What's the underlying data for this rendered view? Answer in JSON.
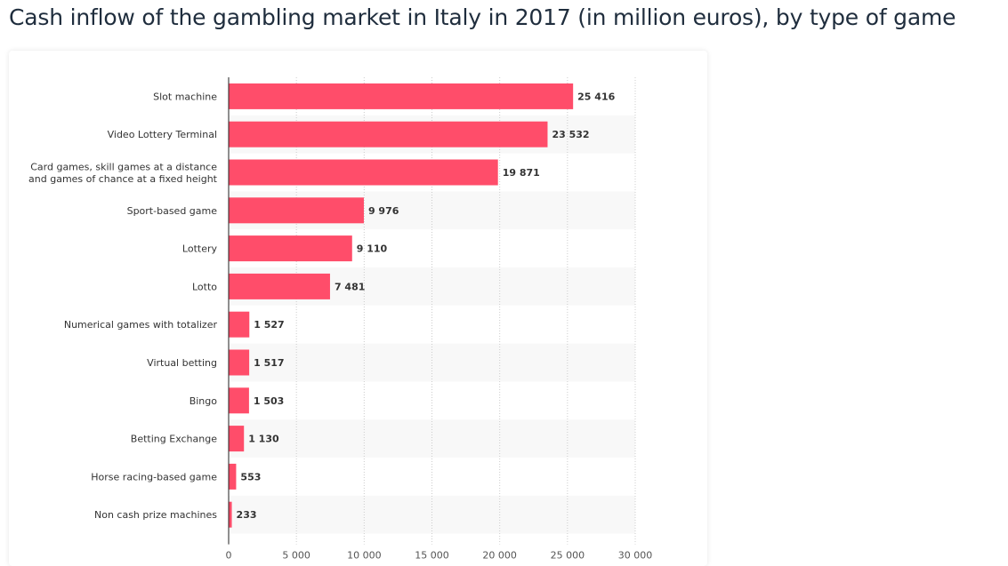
{
  "title": "Cash inflow of the gambling market in Italy in 2017 (in million euros), by type of game",
  "colors": {
    "bar": "#ff4d6a",
    "band": "#f8f8f8",
    "grid": "#cccccc",
    "axis": "#222222"
  },
  "chart_data": {
    "type": "bar",
    "orientation": "horizontal",
    "title": "Cash inflow of the gambling market in Italy in 2017 (in million euros), by type of game",
    "xlabel": "",
    "ylabel": "",
    "xlim": [
      0,
      30000
    ],
    "xticks": [
      0,
      5000,
      10000,
      15000,
      20000,
      25000,
      30000
    ],
    "xtick_labels": [
      "0",
      "5 000",
      "10 000",
      "15 000",
      "20 000",
      "25 000",
      "30 000"
    ],
    "grid": true,
    "categories": [
      [
        "Slot machine"
      ],
      [
        "Video Lottery Terminal"
      ],
      [
        "Card games, skill games at a distance",
        "and games of chance at a fixed height"
      ],
      [
        "Sport-based game"
      ],
      [
        "Lottery"
      ],
      [
        "Lotto"
      ],
      [
        "Numerical games with totalizer"
      ],
      [
        "Virtual betting"
      ],
      [
        "Bingo"
      ],
      [
        "Betting Exchange"
      ],
      [
        "Horse racing-based game"
      ],
      [
        "Non cash prize machines"
      ]
    ],
    "values": [
      25416,
      23532,
      19871,
      9976,
      9110,
      7481,
      1527,
      1517,
      1503,
      1130,
      553,
      233
    ],
    "value_labels": [
      "25 416",
      "23 532",
      "19 871",
      "9 976",
      "9 110",
      "7 481",
      "1 527",
      "1 517",
      "1 503",
      "1 130",
      "553",
      "233"
    ]
  }
}
